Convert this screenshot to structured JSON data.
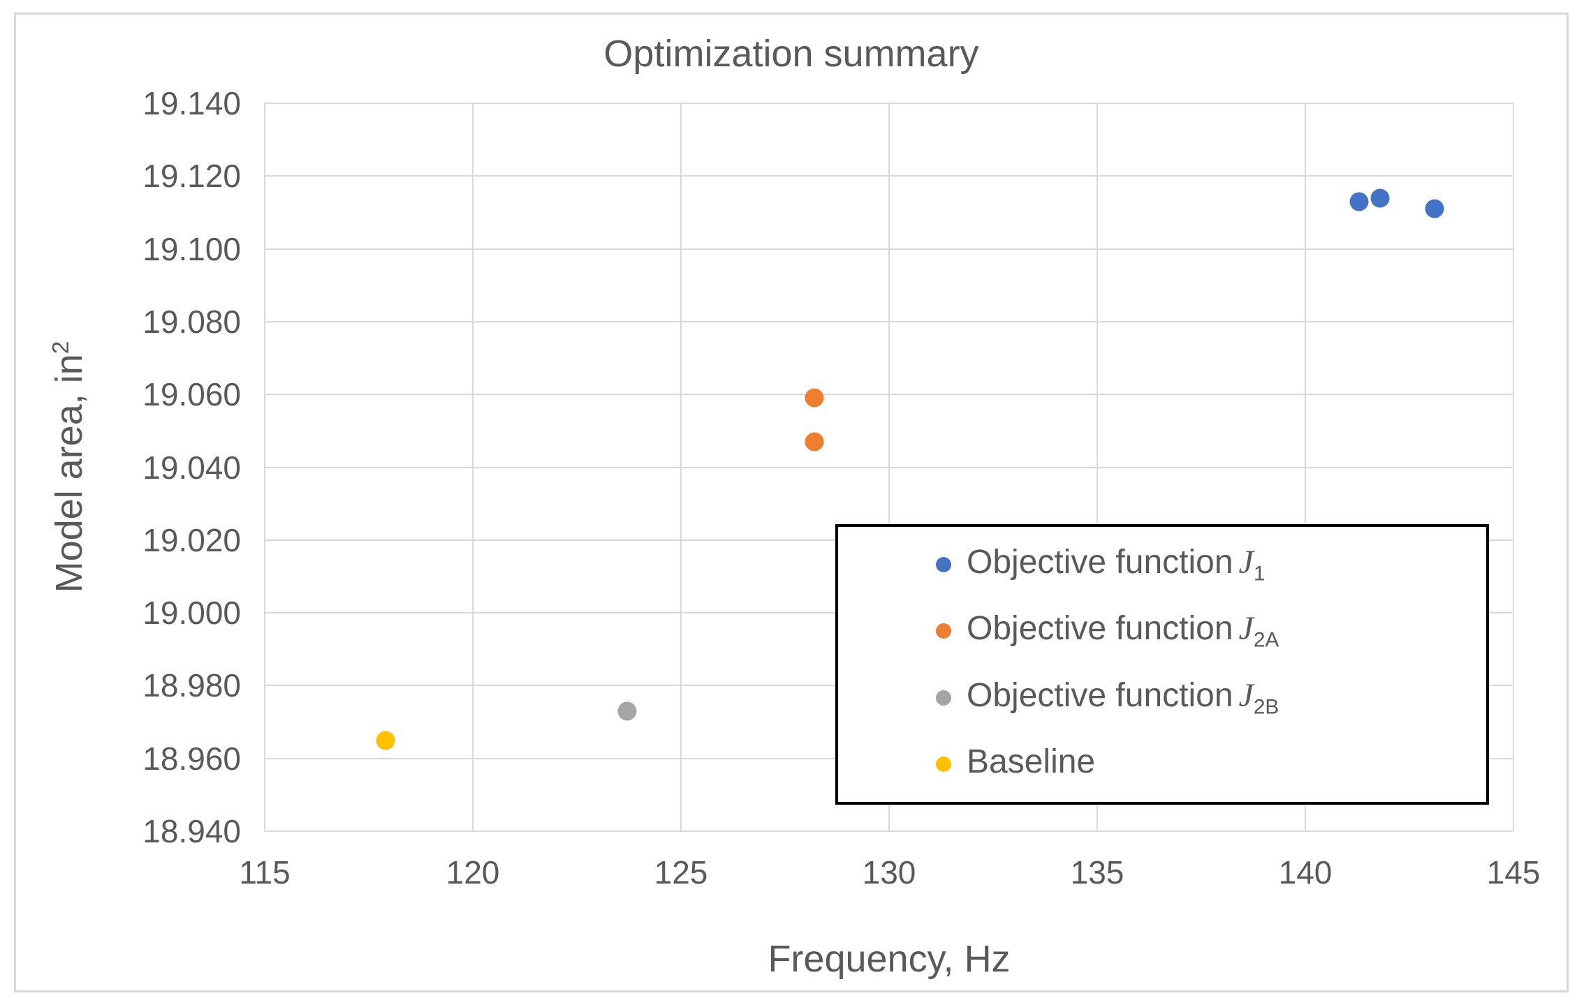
{
  "chart_data": {
    "type": "scatter",
    "title": "Optimization summary",
    "xlabel": "Frequency, Hz",
    "ylabel": "Model area, in²",
    "ylabel_text": "Model area, in",
    "ylabel_sup": "2",
    "xlim": [
      115,
      145
    ],
    "ylim": [
      18.94,
      19.14
    ],
    "grid": true,
    "legend_position": "inside-bottom-right",
    "x_tick_values": [
      115,
      120,
      125,
      130,
      135,
      140,
      145
    ],
    "x_tick_labels": [
      "115",
      "120",
      "125",
      "130",
      "135",
      "140",
      "145"
    ],
    "y_tick_values": [
      19.14,
      19.12,
      19.1,
      19.08,
      19.06,
      19.04,
      19.02,
      19.0,
      18.98,
      18.96,
      18.94
    ],
    "y_tick_labels": [
      "19.140",
      "19.120",
      "19.100",
      "19.080",
      "19.060",
      "19.040",
      "19.020",
      "19.000",
      "18.980",
      "18.960",
      "18.940"
    ],
    "series": [
      {
        "name": "Objective function J1",
        "label_text": "Objective function",
        "label_symbol": "J",
        "label_sub": "1",
        "color": "#4472C4",
        "points": [
          [
            141.3,
            19.113
          ],
          [
            141.8,
            19.114
          ],
          [
            143.1,
            19.111
          ]
        ]
      },
      {
        "name": "Objective function J2A",
        "label_text": "Objective function",
        "label_symbol": "J",
        "label_sub": "2A",
        "color": "#ED7D31",
        "points": [
          [
            128.2,
            19.059
          ],
          [
            128.2,
            19.047
          ]
        ]
      },
      {
        "name": "Objective function J2B",
        "label_text": "Objective function",
        "label_symbol": "J",
        "label_sub": "2B",
        "color": "#A5A5A5",
        "points": [
          [
            123.7,
            18.973
          ]
        ]
      },
      {
        "name": "Baseline",
        "label_text": "Baseline",
        "label_symbol": "",
        "label_sub": "",
        "color": "#FFC000",
        "points": [
          [
            117.9,
            18.965
          ]
        ]
      }
    ],
    "colors": {
      "text": "#595959",
      "gridline": "#D9D9D9",
      "legend_border": "#000000",
      "frame_border": "#D9D9D9",
      "background": "#FFFFFF"
    }
  }
}
